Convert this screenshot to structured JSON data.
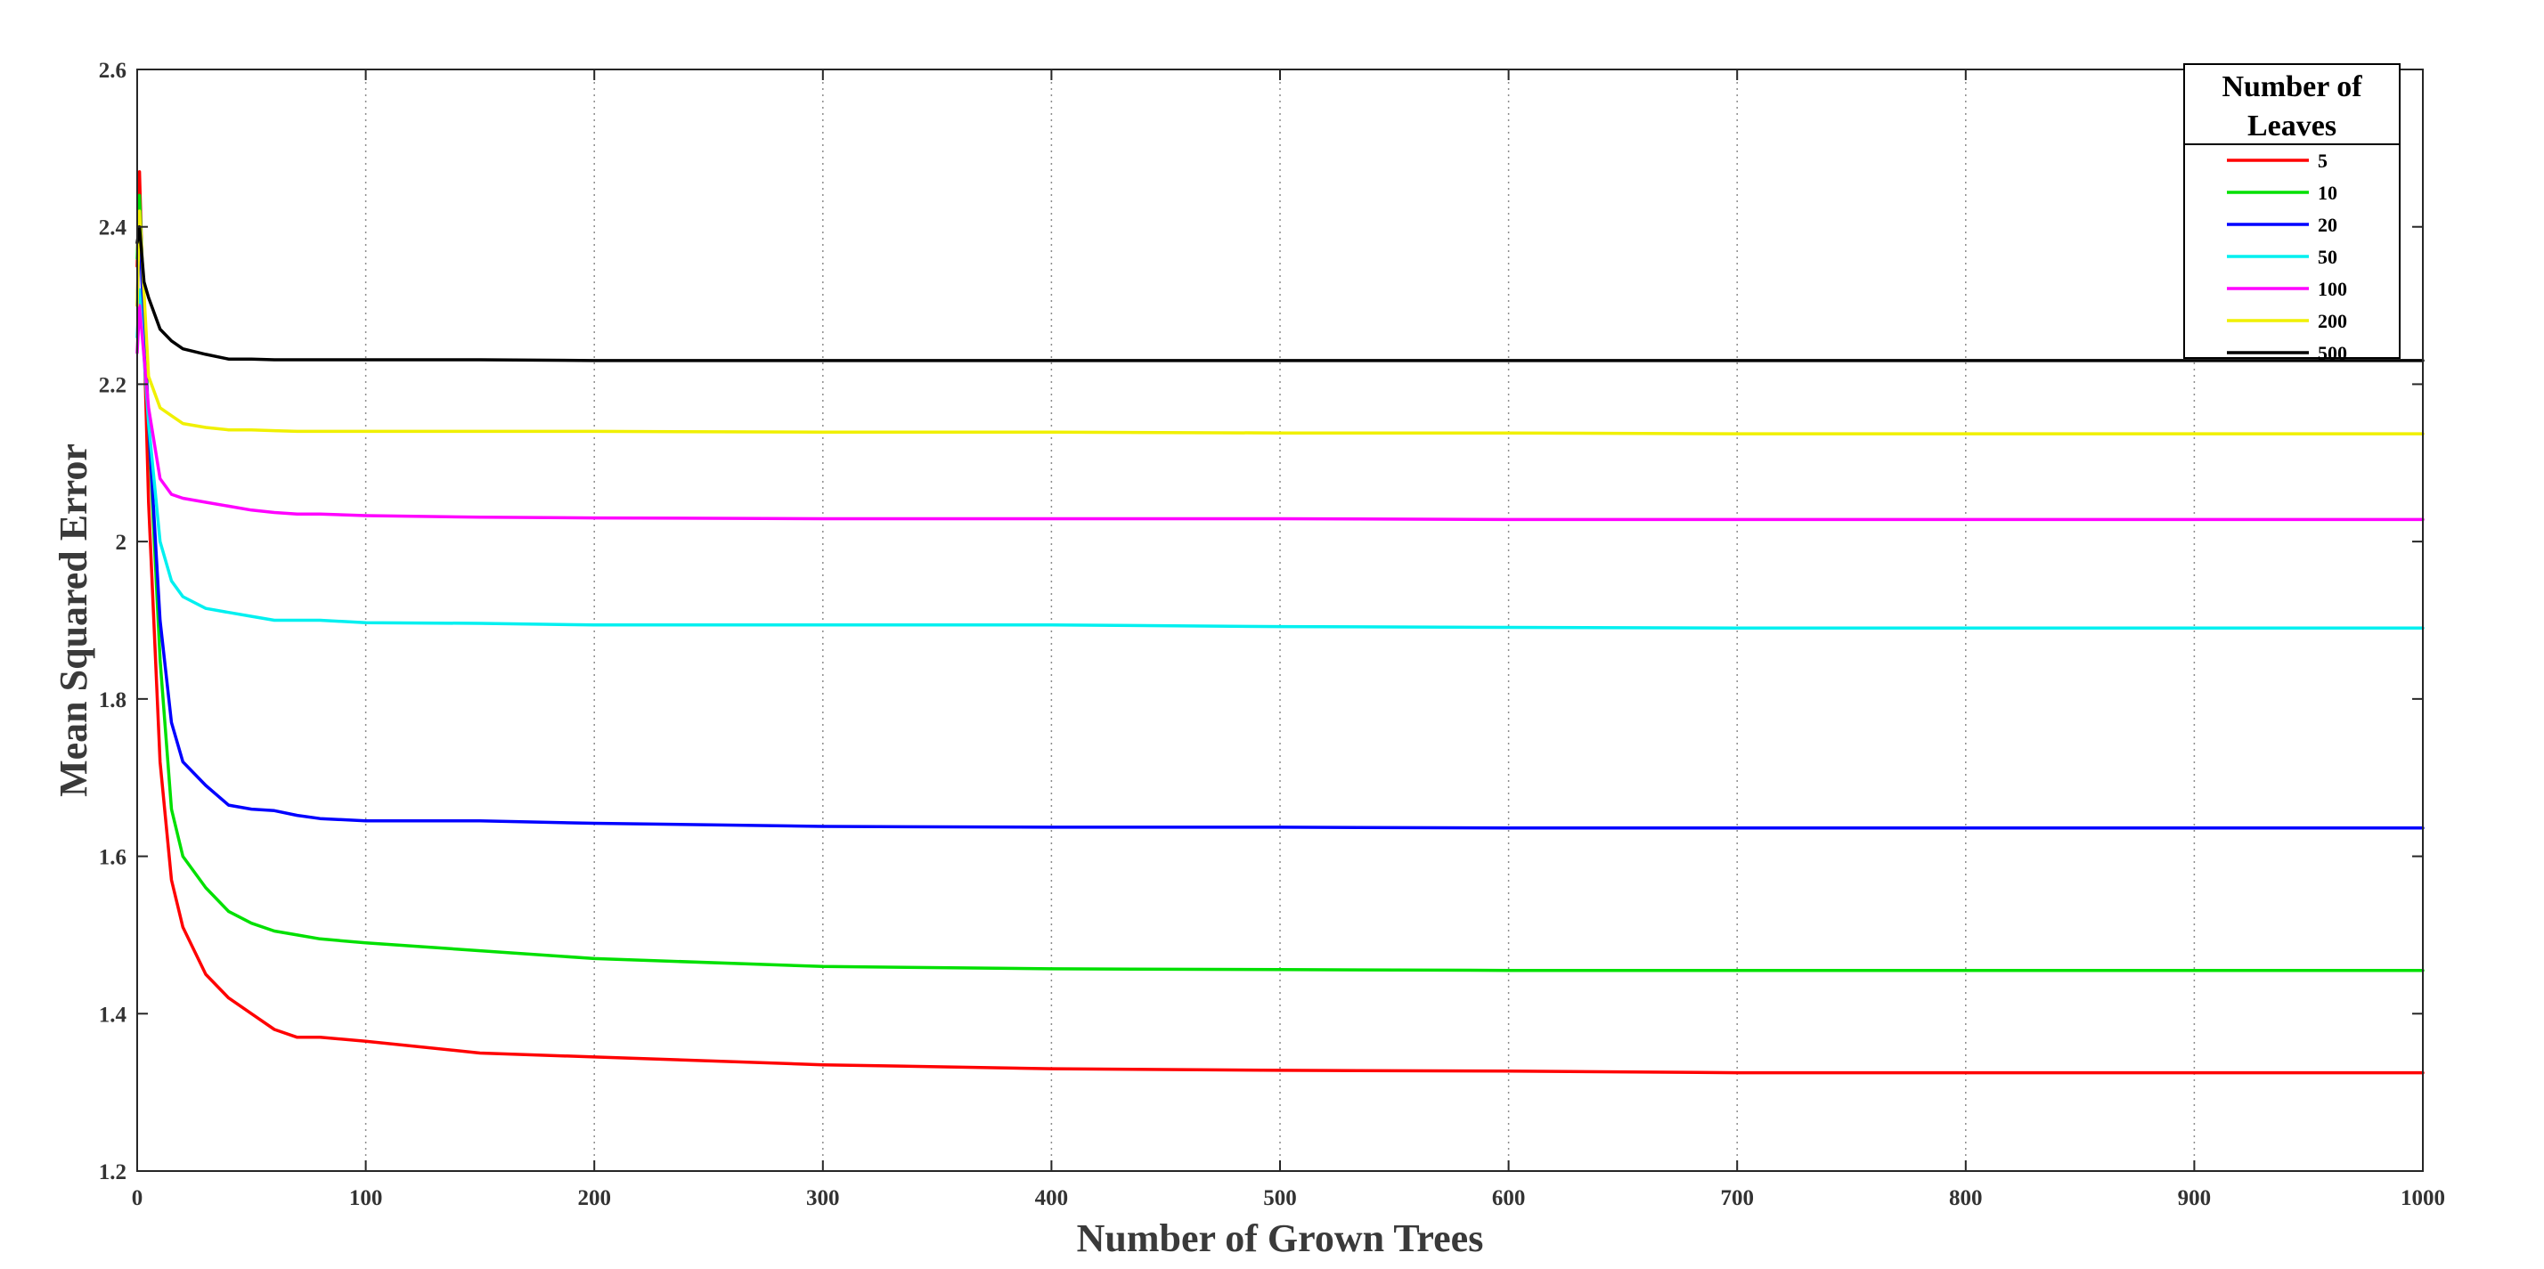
{
  "chart_data": {
    "type": "line",
    "xlabel": "Number of Grown Trees",
    "ylabel": "Mean Squared Error",
    "xlim": [
      0,
      1000
    ],
    "ylim": [
      1.2,
      2.6
    ],
    "xticks": [
      0,
      100,
      200,
      300,
      400,
      500,
      600,
      700,
      800,
      900,
      1000
    ],
    "yticks": [
      1.2,
      1.4,
      1.6,
      1.8,
      2.0,
      2.2,
      2.4,
      2.6
    ],
    "xtick_labels": [
      "0",
      "100",
      "200",
      "300",
      "400",
      "500",
      "600",
      "700",
      "800",
      "900",
      "1000"
    ],
    "ytick_labels": [
      "1.2",
      "1.4",
      "1.6",
      "1.8",
      "2",
      "2.2",
      "2.4",
      "2.6"
    ],
    "grid": "vertical dotted",
    "legend": {
      "title": "Number of Leaves",
      "title_lines": [
        "Number of",
        "Leaves"
      ],
      "placement": "top-right"
    },
    "series": [
      {
        "name": "5",
        "color": "#ff0000",
        "x": [
          0,
          1,
          5,
          10,
          15,
          20,
          30,
          40,
          50,
          60,
          70,
          80,
          100,
          150,
          200,
          300,
          400,
          500,
          600,
          700,
          800,
          900,
          1000
        ],
        "y": [
          2.35,
          2.47,
          2.05,
          1.72,
          1.57,
          1.51,
          1.45,
          1.42,
          1.4,
          1.38,
          1.37,
          1.37,
          1.365,
          1.35,
          1.345,
          1.335,
          1.33,
          1.328,
          1.327,
          1.325,
          1.325,
          1.325,
          1.325
        ]
      },
      {
        "name": "10",
        "color": "#00e000",
        "x": [
          0,
          1,
          5,
          10,
          15,
          20,
          30,
          40,
          50,
          60,
          70,
          80,
          100,
          150,
          200,
          300,
          400,
          500,
          600,
          700,
          800,
          900,
          1000
        ],
        "y": [
          2.36,
          2.44,
          2.15,
          1.85,
          1.66,
          1.6,
          1.56,
          1.53,
          1.515,
          1.505,
          1.5,
          1.495,
          1.49,
          1.48,
          1.47,
          1.46,
          1.457,
          1.456,
          1.455,
          1.455,
          1.455,
          1.455,
          1.455
        ]
      },
      {
        "name": "20",
        "color": "#0000ff",
        "x": [
          0,
          1,
          5,
          10,
          15,
          20,
          30,
          40,
          50,
          60,
          70,
          80,
          100,
          150,
          200,
          300,
          400,
          500,
          600,
          700,
          800,
          900,
          1000
        ],
        "y": [
          2.3,
          2.4,
          2.15,
          1.9,
          1.77,
          1.72,
          1.69,
          1.665,
          1.66,
          1.658,
          1.652,
          1.648,
          1.645,
          1.645,
          1.642,
          1.638,
          1.637,
          1.637,
          1.636,
          1.636,
          1.636,
          1.636,
          1.636
        ]
      },
      {
        "name": "50",
        "color": "#00f0f0",
        "x": [
          0,
          1,
          5,
          10,
          15,
          20,
          30,
          40,
          50,
          60,
          70,
          80,
          100,
          150,
          200,
          300,
          400,
          500,
          600,
          700,
          800,
          900,
          1000
        ],
        "y": [
          2.26,
          2.32,
          2.15,
          2.0,
          1.95,
          1.93,
          1.915,
          1.91,
          1.905,
          1.9,
          1.9,
          1.9,
          1.897,
          1.896,
          1.894,
          1.894,
          1.894,
          1.892,
          1.891,
          1.89,
          1.89,
          1.89,
          1.89
        ]
      },
      {
        "name": "100",
        "color": "#ff00ff",
        "x": [
          0,
          1,
          5,
          10,
          15,
          20,
          30,
          40,
          50,
          60,
          70,
          80,
          100,
          150,
          200,
          300,
          400,
          500,
          600,
          700,
          800,
          900,
          1000
        ],
        "y": [
          2.24,
          2.3,
          2.17,
          2.08,
          2.06,
          2.055,
          2.05,
          2.045,
          2.04,
          2.037,
          2.035,
          2.035,
          2.033,
          2.031,
          2.03,
          2.029,
          2.029,
          2.029,
          2.028,
          2.028,
          2.028,
          2.028,
          2.028
        ]
      },
      {
        "name": "200",
        "color": "#f0f000",
        "x": [
          0,
          1,
          5,
          10,
          15,
          20,
          30,
          40,
          50,
          60,
          70,
          80,
          100,
          150,
          200,
          300,
          400,
          500,
          600,
          700,
          800,
          900,
          1000
        ],
        "y": [
          2.3,
          2.42,
          2.21,
          2.17,
          2.16,
          2.15,
          2.145,
          2.142,
          2.142,
          2.141,
          2.14,
          2.14,
          2.14,
          2.14,
          2.14,
          2.139,
          2.139,
          2.138,
          2.138,
          2.137,
          2.137,
          2.137,
          2.137
        ]
      },
      {
        "name": "500",
        "color": "#000000",
        "x": [
          0,
          1,
          3,
          5,
          10,
          15,
          20,
          30,
          40,
          50,
          60,
          80,
          100,
          150,
          200,
          300,
          400,
          500,
          600,
          700,
          800,
          900,
          1000
        ],
        "y": [
          2.38,
          2.4,
          2.33,
          2.31,
          2.27,
          2.255,
          2.245,
          2.238,
          2.232,
          2.232,
          2.231,
          2.231,
          2.231,
          2.231,
          2.23,
          2.23,
          2.23,
          2.23,
          2.23,
          2.23,
          2.23,
          2.23,
          2.23
        ]
      }
    ]
  }
}
